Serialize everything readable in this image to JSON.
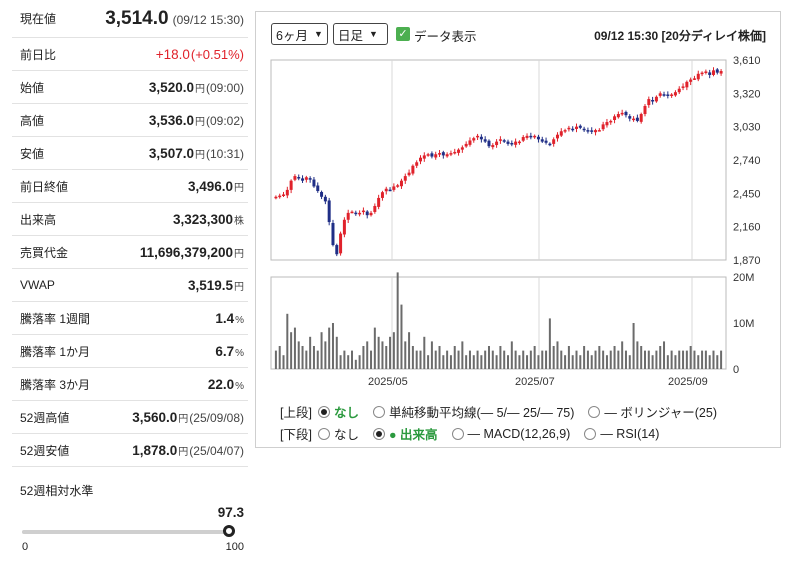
{
  "quote": {
    "rows": [
      {
        "label": "現在値",
        "value": "3,514.0",
        "unit": "",
        "sub": "(09/12 15:30)",
        "cls": "first"
      },
      {
        "label": "前日比",
        "value": "+18.0",
        "unit": "",
        "sub": "(+0.51%)",
        "cls": "change"
      },
      {
        "label": "始値",
        "value": "3,520.0",
        "unit": "円",
        "sub": "(09:00)"
      },
      {
        "label": "高値",
        "value": "3,536.0",
        "unit": "円",
        "sub": "(09:02)"
      },
      {
        "label": "安値",
        "value": "3,507.0",
        "unit": "円",
        "sub": "(10:31)"
      },
      {
        "label": "前日終値",
        "value": "3,496.0",
        "unit": "円",
        "sub": ""
      },
      {
        "label": "出来高",
        "value": "3,323,300",
        "unit": "株",
        "sub": ""
      },
      {
        "label": "売買代金",
        "value": "11,696,379,200",
        "unit": "円",
        "sub": ""
      },
      {
        "label": "VWAP",
        "value": "3,519.5",
        "unit": "円",
        "sub": ""
      },
      {
        "label": "騰落率 1週間",
        "value": "1.4",
        "unit": "%",
        "sub": ""
      },
      {
        "label": "騰落率 1か月",
        "value": "6.7",
        "unit": "%",
        "sub": ""
      },
      {
        "label": "騰落率 3か月",
        "value": "22.0",
        "unit": "%",
        "sub": ""
      },
      {
        "label": "52週高値",
        "value": "3,560.0",
        "unit": "円",
        "sub": "(25/09/08)"
      },
      {
        "label": "52週安値",
        "value": "1,878.0",
        "unit": "円",
        "sub": "(25/04/07)"
      }
    ],
    "relative_level": {
      "label": "52週相対水準",
      "value": "97.3",
      "fraction": 0.973,
      "min": "0",
      "max": "100"
    }
  },
  "controls": {
    "period": "6ヶ月",
    "interval": "日足",
    "show_data_label": "データ表示",
    "show_data_checked": true,
    "timestamp": "09/12 15:30 [20分ディレイ株価]"
  },
  "options": {
    "upper": {
      "label": "[上段]",
      "items": [
        {
          "text": "なし",
          "selected": true
        },
        {
          "text": "単純移動平均線(— 5/— 25/— 75)",
          "selected": false
        },
        {
          "text": "— ボリンジャー(25)",
          "selected": false
        }
      ]
    },
    "lower": {
      "label": "[下段]",
      "items": [
        {
          "text": "なし",
          "selected": false
        },
        {
          "text": "● 出来高",
          "selected": true
        },
        {
          "text": "— MACD(12,26,9)",
          "selected": false
        },
        {
          "text": "— RSI(14)",
          "selected": false
        }
      ]
    }
  },
  "colors": {
    "up": "#e0222b",
    "down": "#1f2e86",
    "volume": "#6b6b6b",
    "grid": "#d8d8d8",
    "check": "#4caf50",
    "accent_green": "#2c9a3f"
  },
  "chart_data": {
    "type": "candlestick",
    "price_axis": {
      "ticks": [
        "3,610",
        "3,320",
        "3,030",
        "2,740",
        "2,450",
        "2,160",
        "1,870"
      ],
      "ylim": [
        1870,
        3610
      ]
    },
    "volume_axis": {
      "ticks": [
        "20M",
        "10M",
        "0"
      ],
      "ylim": [
        0,
        20
      ]
    },
    "x_ticks": [
      "2025/05",
      "2025/07",
      "2025/09"
    ],
    "close": [
      2420,
      2430,
      2440,
      2480,
      2560,
      2600,
      2580,
      2560,
      2590,
      2570,
      2510,
      2470,
      2420,
      2380,
      2200,
      2000,
      1920,
      2100,
      2220,
      2280,
      2290,
      2270,
      2280,
      2300,
      2260,
      2280,
      2340,
      2410,
      2460,
      2490,
      2480,
      2510,
      2520,
      2560,
      2600,
      2630,
      2690,
      2720,
      2760,
      2780,
      2790,
      2770,
      2790,
      2800,
      2780,
      2790,
      2800,
      2810,
      2830,
      2850,
      2880,
      2910,
      2930,
      2950,
      2920,
      2900,
      2860,
      2870,
      2900,
      2920,
      2900,
      2880,
      2880,
      2900,
      2900,
      2940,
      2950,
      2940,
      2950,
      2920,
      2900,
      2890,
      2880,
      2920,
      2960,
      2990,
      3000,
      3020,
      3010,
      3030,
      3020,
      3000,
      2990,
      2990,
      3000,
      3000,
      3050,
      3070,
      3080,
      3120,
      3140,
      3150,
      3130,
      3100,
      3100,
      3080,
      3140,
      3210,
      3270,
      3250,
      3290,
      3320,
      3310,
      3300,
      3310,
      3330,
      3360,
      3380,
      3420,
      3440,
      3450,
      3490,
      3500,
      3510,
      3480,
      3520,
      3500,
      3514
    ],
    "volume": [
      4,
      5,
      3,
      12,
      8,
      9,
      6,
      5,
      4,
      7,
      5,
      4,
      8,
      6,
      9,
      10,
      7,
      3,
      4,
      3,
      4,
      2,
      3,
      5,
      6,
      4,
      9,
      7,
      6,
      5,
      7,
      8,
      21,
      14,
      6,
      8,
      5,
      4,
      4,
      7,
      3,
      6,
      4,
      5,
      3,
      4,
      3,
      5,
      4,
      6,
      3,
      4,
      3,
      4,
      3,
      4,
      5,
      4,
      3,
      5,
      4,
      3,
      6,
      4,
      3,
      4,
      3,
      4,
      5,
      3,
      4,
      4,
      11,
      5,
      6,
      4,
      3,
      5,
      3,
      4,
      3,
      5,
      4,
      3,
      4,
      5,
      4,
      3,
      4,
      5,
      4,
      6,
      4,
      3,
      10,
      6,
      5,
      4,
      4,
      3,
      4,
      5,
      6,
      3,
      4,
      3,
      4,
      4,
      4,
      5,
      4,
      3,
      4,
      4,
      3,
      4,
      3,
      4
    ]
  }
}
